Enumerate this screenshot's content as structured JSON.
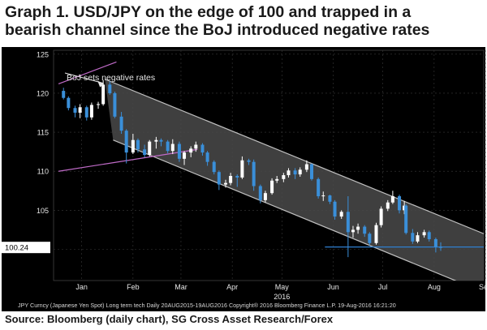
{
  "title": {
    "line1": "Graph 1. USD/JPY on the edge of 100 and trapped in a",
    "line2": "bearish channel since the BoJ introduced negative rates"
  },
  "footer": "Source: Bloomberg (daily chart), SG Cross Asset Research/Forex",
  "bloomberg_caption": "JPY Curncy (Japanese Yen Spot) Long term tech  Daily 20AUG2015-19AUG2016 Copyright® 2016 Bloomberg Finance L.P.  19-Aug-2016 16:21:20",
  "colors": {
    "panel_bg": "#000000",
    "channel_fill": "#4a4a4a",
    "channel_line": "#bfbfbf",
    "candle_up": "#ffffff",
    "candle_down": "#3a8fd9",
    "support_line": "#2f7fd0",
    "trend_line": "#c06bc8",
    "price_tag_bg": "#ffffff"
  },
  "chart_data": {
    "type": "candlestick",
    "x_axis": {
      "type": "date",
      "range": [
        "2015-12-29",
        "2016-09-14"
      ],
      "ticks": [
        {
          "label": "Jan",
          "date": "2016-01-15"
        },
        {
          "label": "Feb",
          "date": "2016-02-15"
        },
        {
          "label": "Mar",
          "date": "2016-03-15"
        },
        {
          "label": "Apr",
          "date": "2016-04-15"
        },
        {
          "label": "May",
          "date": "2016-05-15"
        },
        {
          "label": "Jun",
          "date": "2016-06-15"
        },
        {
          "label": "Jul",
          "date": "2016-07-15"
        },
        {
          "label": "Aug",
          "date": "2016-08-15"
        },
        {
          "label": "Sep",
          "date": "2016-09-15"
        }
      ],
      "year_label": {
        "text": "2016",
        "date": "2016-05-15"
      }
    },
    "y_axis": {
      "range": [
        96,
        125.5
      ],
      "ticks": [
        100,
        105,
        110,
        115,
        120,
        125
      ],
      "last_price_tag": "100.24",
      "last_price": 100.24,
      "grid": true
    },
    "annotation": {
      "text": "BoJ sets negative rates",
      "date": "2016-01-29",
      "price": 121.7
    },
    "channel": {
      "upper": [
        [
          "2016-01-29",
          121.8
        ],
        [
          "2016-09-14",
          102.0
        ]
      ],
      "lower": [
        [
          "2016-02-03",
          114.0
        ],
        [
          "2016-09-14",
          94.5
        ]
      ]
    },
    "trend_lines": [
      [
        [
          "2016-01-01",
          121.2
        ],
        [
          "2016-02-05",
          124.0
        ]
      ],
      [
        [
          "2016-01-01",
          110.0
        ],
        [
          "2016-03-25",
          112.8
        ]
      ]
    ],
    "support_line": {
      "price": 100.3,
      "from": "2016-06-10",
      "to": "2016-09-14"
    },
    "series": [
      {
        "date": "2016-01-04",
        "open": 120.3,
        "high": 120.7,
        "low": 119.2,
        "close": 119.4
      },
      {
        "date": "2016-01-07",
        "open": 119.4,
        "high": 119.6,
        "low": 117.8,
        "close": 118.1
      },
      {
        "date": "2016-01-11",
        "open": 118.1,
        "high": 118.4,
        "low": 116.9,
        "close": 117.5
      },
      {
        "date": "2016-01-14",
        "open": 117.5,
        "high": 118.6,
        "low": 116.8,
        "close": 118.2
      },
      {
        "date": "2016-01-18",
        "open": 118.2,
        "high": 118.4,
        "low": 116.5,
        "close": 116.9
      },
      {
        "date": "2016-01-21",
        "open": 116.9,
        "high": 118.8,
        "low": 116.6,
        "close": 118.5
      },
      {
        "date": "2016-01-25",
        "open": 118.5,
        "high": 118.9,
        "low": 118.0,
        "close": 118.6
      },
      {
        "date": "2016-01-28",
        "open": 118.6,
        "high": 121.7,
        "low": 118.4,
        "close": 121.1
      },
      {
        "date": "2016-02-01",
        "open": 121.1,
        "high": 121.5,
        "low": 119.8,
        "close": 120.0
      },
      {
        "date": "2016-02-04",
        "open": 120.0,
        "high": 120.2,
        "low": 116.8,
        "close": 117.0
      },
      {
        "date": "2016-02-08",
        "open": 117.0,
        "high": 117.6,
        "low": 114.8,
        "close": 115.2
      },
      {
        "date": "2016-02-11",
        "open": 115.2,
        "high": 115.4,
        "low": 111.0,
        "close": 112.4
      },
      {
        "date": "2016-02-15",
        "open": 112.4,
        "high": 114.8,
        "low": 112.2,
        "close": 114.0
      },
      {
        "date": "2016-02-18",
        "open": 114.0,
        "high": 114.2,
        "low": 112.4,
        "close": 112.8
      },
      {
        "date": "2016-02-22",
        "open": 112.8,
        "high": 113.4,
        "low": 111.8,
        "close": 112.1
      },
      {
        "date": "2016-02-25",
        "open": 112.1,
        "high": 114.0,
        "low": 111.9,
        "close": 113.8
      },
      {
        "date": "2016-02-29",
        "open": 113.8,
        "high": 114.4,
        "low": 112.9,
        "close": 114.0
      },
      {
        "date": "2016-03-03",
        "open": 114.0,
        "high": 114.2,
        "low": 113.2,
        "close": 113.8
      },
      {
        "date": "2016-03-07",
        "open": 113.8,
        "high": 114.0,
        "low": 112.3,
        "close": 112.6
      },
      {
        "date": "2016-03-10",
        "open": 112.6,
        "high": 114.1,
        "low": 112.2,
        "close": 113.5
      },
      {
        "date": "2016-03-14",
        "open": 113.5,
        "high": 113.8,
        "low": 111.2,
        "close": 111.6
      },
      {
        "date": "2016-03-17",
        "open": 111.6,
        "high": 112.6,
        "low": 110.8,
        "close": 112.4
      },
      {
        "date": "2016-03-21",
        "open": 112.4,
        "high": 113.2,
        "low": 111.8,
        "close": 112.9
      },
      {
        "date": "2016-03-24",
        "open": 112.9,
        "high": 113.8,
        "low": 112.5,
        "close": 113.4
      },
      {
        "date": "2016-03-28",
        "open": 113.4,
        "high": 113.6,
        "low": 112.0,
        "close": 112.4
      },
      {
        "date": "2016-03-31",
        "open": 112.4,
        "high": 112.6,
        "low": 110.7,
        "close": 111.2
      },
      {
        "date": "2016-04-04",
        "open": 111.2,
        "high": 111.4,
        "low": 109.6,
        "close": 109.9
      },
      {
        "date": "2016-04-07",
        "open": 109.9,
        "high": 110.1,
        "low": 107.6,
        "close": 108.3
      },
      {
        "date": "2016-04-11",
        "open": 108.3,
        "high": 108.9,
        "low": 107.9,
        "close": 108.5
      },
      {
        "date": "2016-04-14",
        "open": 108.5,
        "high": 109.8,
        "low": 108.2,
        "close": 109.4
      },
      {
        "date": "2016-04-18",
        "open": 109.4,
        "high": 109.6,
        "low": 108.0,
        "close": 109.2
      },
      {
        "date": "2016-04-21",
        "open": 109.2,
        "high": 111.9,
        "low": 109.0,
        "close": 111.4
      },
      {
        "date": "2016-04-25",
        "open": 111.4,
        "high": 111.6,
        "low": 110.8,
        "close": 111.2
      },
      {
        "date": "2016-04-28",
        "open": 111.2,
        "high": 111.5,
        "low": 107.5,
        "close": 108.1
      },
      {
        "date": "2016-05-02",
        "open": 108.1,
        "high": 108.3,
        "low": 105.9,
        "close": 106.3
      },
      {
        "date": "2016-05-05",
        "open": 106.3,
        "high": 107.5,
        "low": 106.0,
        "close": 107.2
      },
      {
        "date": "2016-05-09",
        "open": 107.2,
        "high": 109.1,
        "low": 107.0,
        "close": 108.8
      },
      {
        "date": "2016-05-12",
        "open": 108.8,
        "high": 109.4,
        "low": 108.5,
        "close": 109.0
      },
      {
        "date": "2016-05-16",
        "open": 109.0,
        "high": 109.8,
        "low": 108.6,
        "close": 109.5
      },
      {
        "date": "2016-05-19",
        "open": 109.5,
        "high": 110.4,
        "low": 109.2,
        "close": 110.1
      },
      {
        "date": "2016-05-23",
        "open": 110.1,
        "high": 110.4,
        "low": 109.0,
        "close": 109.6
      },
      {
        "date": "2016-05-26",
        "open": 109.6,
        "high": 110.5,
        "low": 109.3,
        "close": 110.2
      },
      {
        "date": "2016-05-30",
        "open": 110.2,
        "high": 111.4,
        "low": 109.9,
        "close": 110.9
      },
      {
        "date": "2016-06-02",
        "open": 110.9,
        "high": 111.0,
        "low": 108.8,
        "close": 109.0
      },
      {
        "date": "2016-06-06",
        "open": 109.0,
        "high": 109.2,
        "low": 106.5,
        "close": 106.8
      },
      {
        "date": "2016-06-09",
        "open": 106.8,
        "high": 107.4,
        "low": 106.2,
        "close": 106.9
      },
      {
        "date": "2016-06-13",
        "open": 106.9,
        "high": 107.0,
        "low": 105.8,
        "close": 106.1
      },
      {
        "date": "2016-06-16",
        "open": 106.1,
        "high": 106.3,
        "low": 103.8,
        "close": 104.2
      },
      {
        "date": "2016-06-20",
        "open": 104.2,
        "high": 105.0,
        "low": 103.9,
        "close": 104.8
      },
      {
        "date": "2016-06-24",
        "open": 104.8,
        "high": 106.8,
        "low": 99.0,
        "close": 102.2
      },
      {
        "date": "2016-06-27",
        "open": 102.2,
        "high": 103.0,
        "low": 101.5,
        "close": 102.5
      },
      {
        "date": "2016-06-30",
        "open": 102.5,
        "high": 103.3,
        "low": 102.0,
        "close": 102.9
      },
      {
        "date": "2016-07-04",
        "open": 102.9,
        "high": 103.1,
        "low": 101.6,
        "close": 102.0
      },
      {
        "date": "2016-07-07",
        "open": 102.0,
        "high": 102.2,
        "low": 100.5,
        "close": 100.8
      },
      {
        "date": "2016-07-11",
        "open": 100.8,
        "high": 103.4,
        "low": 100.6,
        "close": 103.1
      },
      {
        "date": "2016-07-14",
        "open": 103.1,
        "high": 105.5,
        "low": 102.8,
        "close": 105.2
      },
      {
        "date": "2016-07-18",
        "open": 105.2,
        "high": 106.3,
        "low": 104.9,
        "close": 106.0
      },
      {
        "date": "2016-07-21",
        "open": 106.0,
        "high": 107.5,
        "low": 105.8,
        "close": 106.8
      },
      {
        "date": "2016-07-25",
        "open": 106.8,
        "high": 107.0,
        "low": 104.6,
        "close": 105.0
      },
      {
        "date": "2016-07-28",
        "open": 105.0,
        "high": 106.2,
        "low": 104.5,
        "close": 105.6
      },
      {
        "date": "2016-07-29",
        "open": 105.6,
        "high": 105.8,
        "low": 101.9,
        "close": 102.1
      },
      {
        "date": "2016-08-02",
        "open": 102.1,
        "high": 102.6,
        "low": 100.7,
        "close": 101.0
      },
      {
        "date": "2016-08-05",
        "open": 101.0,
        "high": 102.2,
        "low": 100.8,
        "close": 101.8
      },
      {
        "date": "2016-08-09",
        "open": 101.8,
        "high": 102.5,
        "low": 101.5,
        "close": 102.2
      },
      {
        "date": "2016-08-12",
        "open": 102.2,
        "high": 102.4,
        "low": 101.0,
        "close": 101.3
      },
      {
        "date": "2016-08-16",
        "open": 101.3,
        "high": 101.5,
        "low": 99.6,
        "close": 100.3
      },
      {
        "date": "2016-08-19",
        "open": 100.3,
        "high": 100.9,
        "low": 99.8,
        "close": 100.24
      }
    ]
  }
}
